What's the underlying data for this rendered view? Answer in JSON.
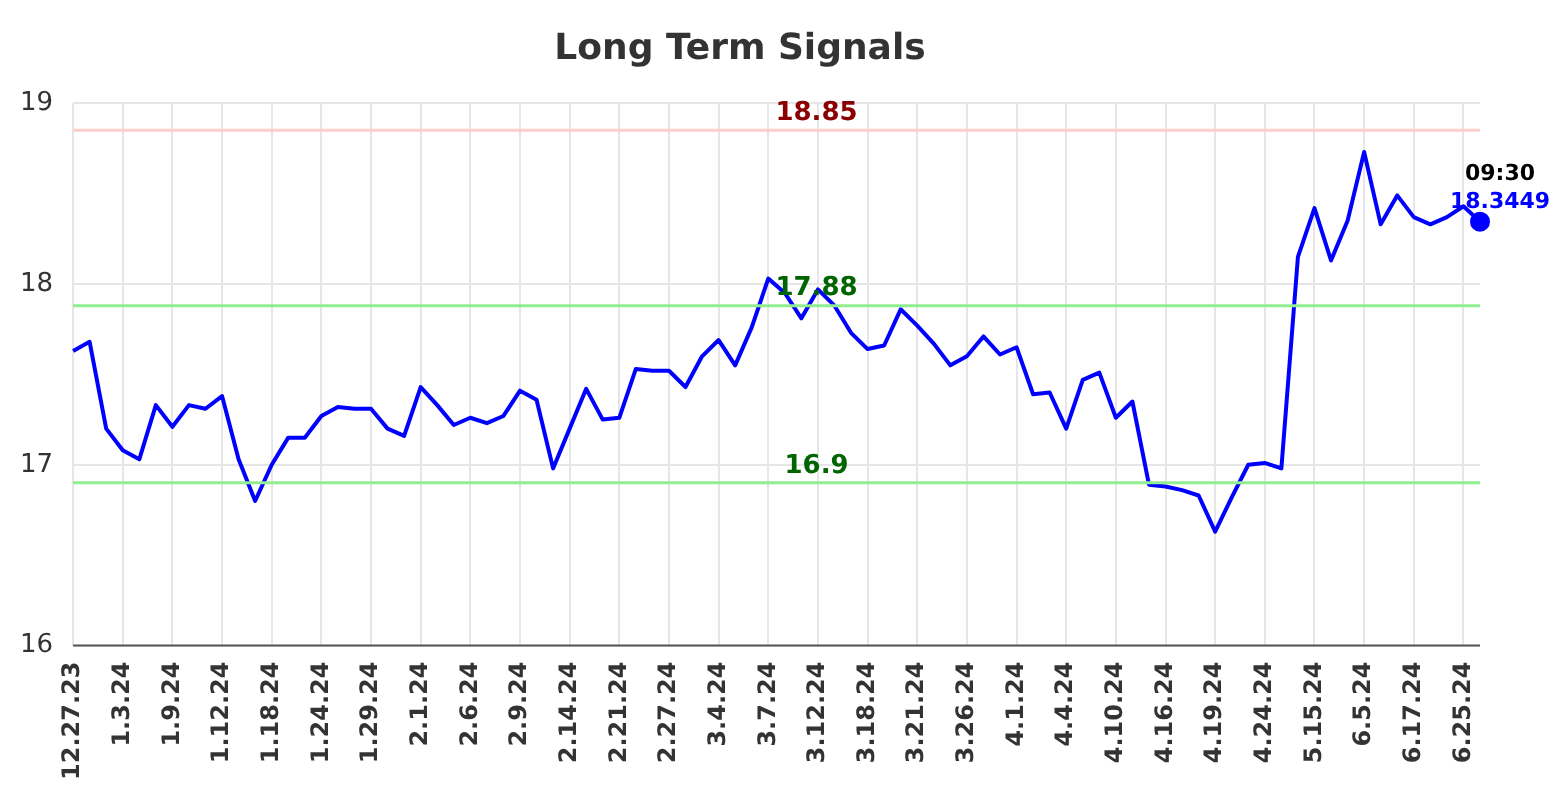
{
  "chart_data": {
    "type": "line",
    "title": "Long Term Signals",
    "categories": [
      "12.27.23",
      null,
      null,
      "1.3.24",
      null,
      null,
      "1.9.24",
      null,
      null,
      "1.12.24",
      null,
      null,
      "1.18.24",
      null,
      null,
      "1.24.24",
      null,
      null,
      "1.29.24",
      null,
      null,
      "2.1.24",
      null,
      null,
      "2.6.24",
      null,
      null,
      "2.9.24",
      null,
      null,
      "2.14.24",
      null,
      null,
      "2.21.24",
      null,
      null,
      "2.27.24",
      null,
      null,
      "3.4.24",
      null,
      null,
      "3.7.24",
      null,
      null,
      "3.12.24",
      null,
      null,
      "3.18.24",
      null,
      null,
      "3.21.24",
      null,
      null,
      "3.26.24",
      null,
      null,
      "4.1.24",
      null,
      null,
      "4.4.24",
      null,
      null,
      "4.10.24",
      null,
      null,
      "4.16.24",
      null,
      null,
      "4.19.24",
      null,
      null,
      "4.24.24",
      null,
      null,
      "5.15.24",
      null,
      null,
      "6.5.24",
      null,
      null,
      "6.17.24",
      null,
      null,
      "6.25.24",
      null
    ],
    "series": [
      {
        "color": "#0000ff",
        "values": [
          17.63,
          17.68,
          17.2,
          17.08,
          17.03,
          17.33,
          17.21,
          17.33,
          17.31,
          17.38,
          17.03,
          16.8,
          17.0,
          17.15,
          17.15,
          17.27,
          17.32,
          17.31,
          17.31,
          17.2,
          17.16,
          17.43,
          17.33,
          17.22,
          17.26,
          17.23,
          17.27,
          17.41,
          17.36,
          16.98,
          17.2,
          17.42,
          17.25,
          17.26,
          17.53,
          17.52,
          17.52,
          17.43,
          17.6,
          17.69,
          17.55,
          17.76,
          18.03,
          17.95,
          17.81,
          17.97,
          17.88,
          17.73,
          17.64,
          17.66,
          17.86,
          17.77,
          17.67,
          17.55,
          17.6,
          17.71,
          17.61,
          17.65,
          17.39,
          17.4,
          17.2,
          17.47,
          17.51,
          17.26,
          17.35,
          16.89,
          16.88,
          16.86,
          16.83,
          16.63,
          16.82,
          17.0,
          17.01,
          16.98,
          18.15,
          18.42,
          18.13,
          18.35,
          18.73,
          18.33,
          18.49,
          18.37,
          18.33,
          18.37,
          18.43,
          18.3449
        ],
        "value_labels": [
          null,
          null,
          null,
          null,
          null,
          null,
          null,
          null,
          null,
          null,
          null,
          null,
          null,
          null,
          null,
          null,
          null,
          null,
          null,
          null,
          null,
          null,
          null,
          null,
          null,
          null,
          null,
          null,
          null,
          null,
          null,
          null,
          null,
          null,
          null,
          null,
          null,
          null,
          null,
          null,
          null,
          null,
          null,
          null,
          null,
          null,
          null,
          null,
          null,
          null,
          null,
          null,
          null,
          null,
          null,
          null,
          null,
          null,
          null,
          null,
          null,
          null,
          null,
          null,
          null,
          null,
          null,
          null,
          null,
          null,
          null,
          null,
          null,
          null,
          null,
          null,
          null,
          null,
          null,
          null,
          null,
          null,
          null,
          null,
          null,
          "18.3449"
        ]
      }
    ],
    "annotations": [
      "09:30"
    ],
    "ylim": [
      16,
      19
    ],
    "yticks": [
      16,
      17,
      18,
      19
    ],
    "grid": true,
    "legend": false,
    "marker": "none",
    "ref_lines": [
      {
        "axis": "y",
        "value": 18.85,
        "label": "18.85",
        "color": "#ffcccc"
      },
      {
        "axis": "y",
        "value": 17.88,
        "label": "17.88",
        "color": "#90ee90"
      },
      {
        "axis": "y",
        "value": 16.9,
        "label": "16.9",
        "color": "#90ee90"
      }
    ]
  }
}
